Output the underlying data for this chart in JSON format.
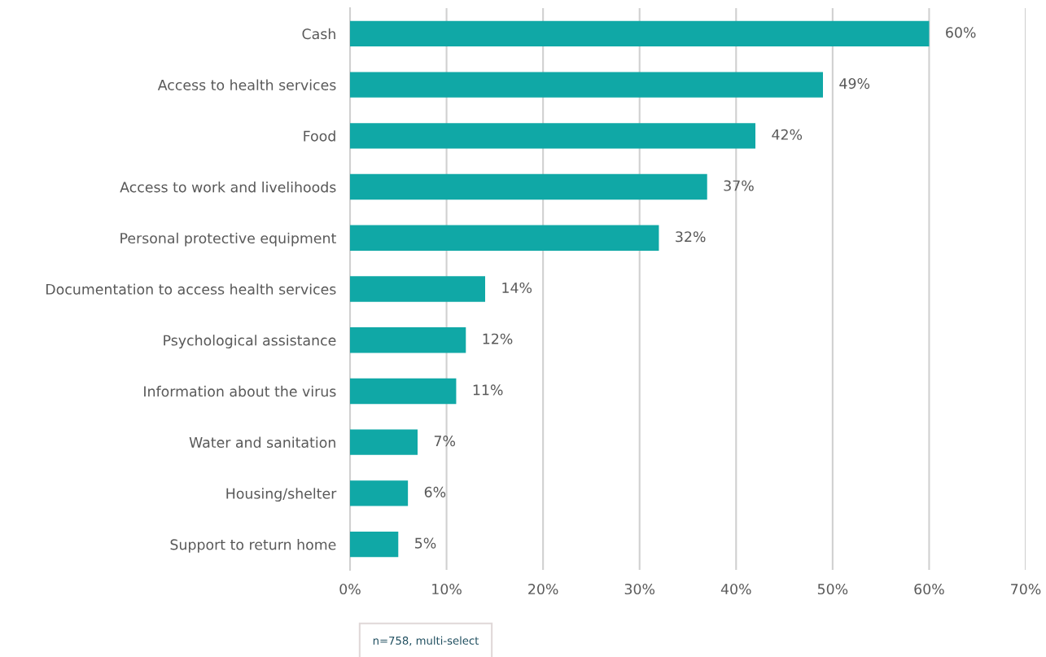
{
  "chart_data": {
    "type": "bar",
    "orientation": "horizontal",
    "categories": [
      "Cash",
      "Access to health services",
      "Food",
      "Access to work and livelihoods",
      "Personal protective equipment",
      "Documentation to access health services",
      "Psychological assistance",
      "Information about the virus",
      "Water and sanitation",
      "Housing/shelter",
      "Support to return home"
    ],
    "values": [
      60,
      49,
      42,
      37,
      32,
      14,
      12,
      11,
      7,
      6,
      5
    ],
    "color": "#10a8a6",
    "value_labels": [
      "60%",
      "49%",
      "42%",
      "37%",
      "32%",
      "14%",
      "12%",
      "11%",
      "7%",
      "6%",
      "5%"
    ],
    "xlim": [
      0,
      70
    ],
    "xticks": [
      {
        "value": 0,
        "label": "0%"
      },
      {
        "value": 10,
        "label": "10%"
      },
      {
        "value": 20,
        "label": "20%"
      },
      {
        "value": 30,
        "label": "30%"
      },
      {
        "value": 40,
        "label": "40%"
      },
      {
        "value": 50,
        "label": "50%"
      },
      {
        "value": 60,
        "label": "60%"
      },
      {
        "value": 70,
        "label": "70%"
      }
    ],
    "grid": "x",
    "annotations": [
      "n=758, multi-select"
    ]
  }
}
